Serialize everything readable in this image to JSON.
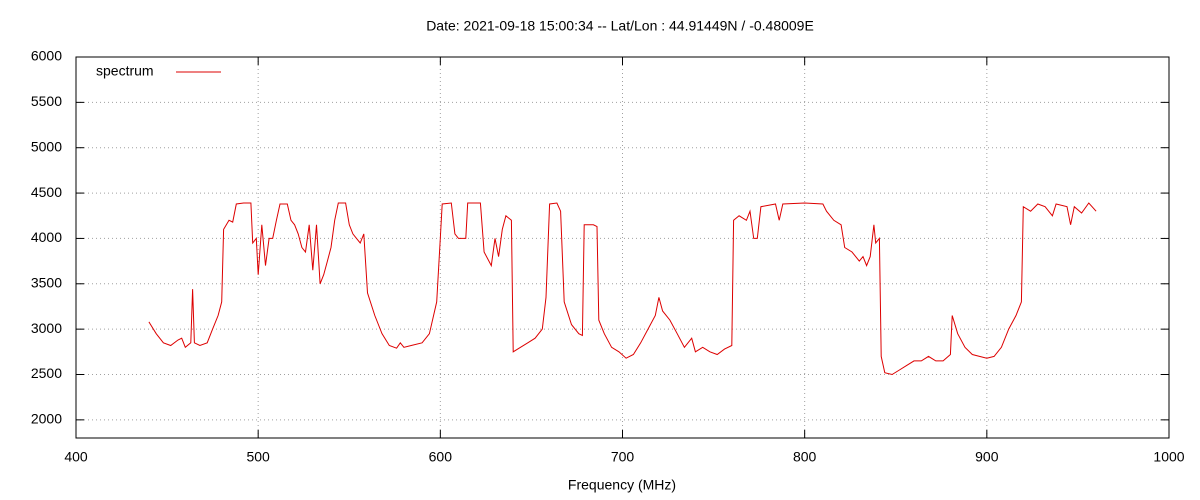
{
  "chart_data": {
    "type": "line",
    "title": "Date: 2021-09-18 15:00:34  --  Lat/Lon : 44.91449N / -0.48009E",
    "x_label": "Frequency (MHz)",
    "xlim": [
      400,
      1000
    ],
    "xticks": [
      400,
      500,
      600,
      700,
      800,
      900,
      1000
    ],
    "ylim": [
      1800,
      6000
    ],
    "yticks": [
      2000,
      2500,
      3000,
      3500,
      4000,
      4500,
      5000,
      5500,
      6000
    ],
    "grid": true,
    "legend": "upper left",
    "x": [
      440,
      444,
      448,
      452,
      456,
      458,
      460,
      463,
      464,
      465,
      468,
      472,
      475,
      478,
      480,
      481,
      484,
      486,
      488,
      492,
      496,
      497,
      499,
      500,
      502,
      504,
      506,
      508,
      510,
      512,
      516,
      518,
      520,
      522,
      524,
      526,
      528,
      530,
      532,
      534,
      536,
      538,
      540,
      542,
      544,
      548,
      550,
      552,
      554,
      556,
      558,
      560,
      564,
      568,
      572,
      576,
      578,
      580,
      584,
      590,
      594,
      598,
      600,
      601,
      606,
      608,
      610,
      614,
      615,
      622,
      624,
      628,
      630,
      632,
      634,
      636,
      639,
      640,
      644,
      648,
      652,
      656,
      658,
      660,
      664,
      666,
      668,
      672,
      676,
      678,
      679,
      684,
      686,
      687,
      690,
      694,
      698,
      702,
      706,
      710,
      714,
      718,
      720,
      722,
      726,
      730,
      734,
      738,
      740,
      744,
      748,
      752,
      756,
      760,
      761,
      764,
      768,
      770,
      772,
      774,
      776,
      784,
      786,
      788,
      800,
      810,
      812,
      816,
      820,
      822,
      826,
      830,
      832,
      834,
      836,
      838,
      839,
      841,
      842,
      844,
      848,
      852,
      856,
      860,
      864,
      868,
      872,
      876,
      880,
      881,
      884,
      888,
      892,
      896,
      900,
      904,
      908,
      912,
      916,
      919,
      920,
      924,
      928,
      932,
      936,
      938,
      944,
      946,
      948,
      952,
      956,
      960
    ],
    "series": [
      {
        "name": "spectrum",
        "color": "#dd0000",
        "values": [
          3080,
          2950,
          2850,
          2820,
          2880,
          2900,
          2800,
          2850,
          3440,
          2850,
          2820,
          2850,
          3000,
          3150,
          3300,
          4100,
          4200,
          4180,
          4380,
          4390,
          4390,
          3950,
          4000,
          3600,
          4150,
          3700,
          4000,
          4000,
          4200,
          4380,
          4380,
          4200,
          4150,
          4050,
          3900,
          3850,
          4150,
          3650,
          4150,
          3500,
          3600,
          3750,
          3900,
          4200,
          4390,
          4390,
          4150,
          4050,
          4000,
          3950,
          4050,
          3400,
          3150,
          2950,
          2820,
          2790,
          2850,
          2800,
          2820,
          2850,
          2950,
          3300,
          4000,
          4380,
          4390,
          4050,
          4000,
          4000,
          4390,
          4390,
          3850,
          3700,
          4000,
          3800,
          4100,
          4250,
          4200,
          2750,
          2800,
          2850,
          2900,
          3000,
          3350,
          4380,
          4390,
          4300,
          3300,
          3050,
          2950,
          2930,
          4150,
          4150,
          4130,
          3100,
          2950,
          2800,
          2750,
          2680,
          2720,
          2850,
          3000,
          3150,
          3350,
          3200,
          3100,
          2950,
          2800,
          2900,
          2750,
          2800,
          2750,
          2720,
          2780,
          2820,
          4200,
          4250,
          4200,
          4300,
          4000,
          4000,
          4350,
          4380,
          4200,
          4380,
          4390,
          4380,
          4300,
          4200,
          4150,
          3900,
          3850,
          3750,
          3800,
          3700,
          3800,
          4150,
          3950,
          4000,
          2700,
          2520,
          2500,
          2550,
          2600,
          2650,
          2650,
          2700,
          2650,
          2650,
          2720,
          3150,
          2950,
          2800,
          2720,
          2700,
          2680,
          2700,
          2800,
          3000,
          3150,
          3300,
          4350,
          4300,
          4380,
          4350,
          4250,
          4380,
          4350,
          4150,
          4350,
          4280,
          4390,
          4300
        ]
      }
    ]
  }
}
